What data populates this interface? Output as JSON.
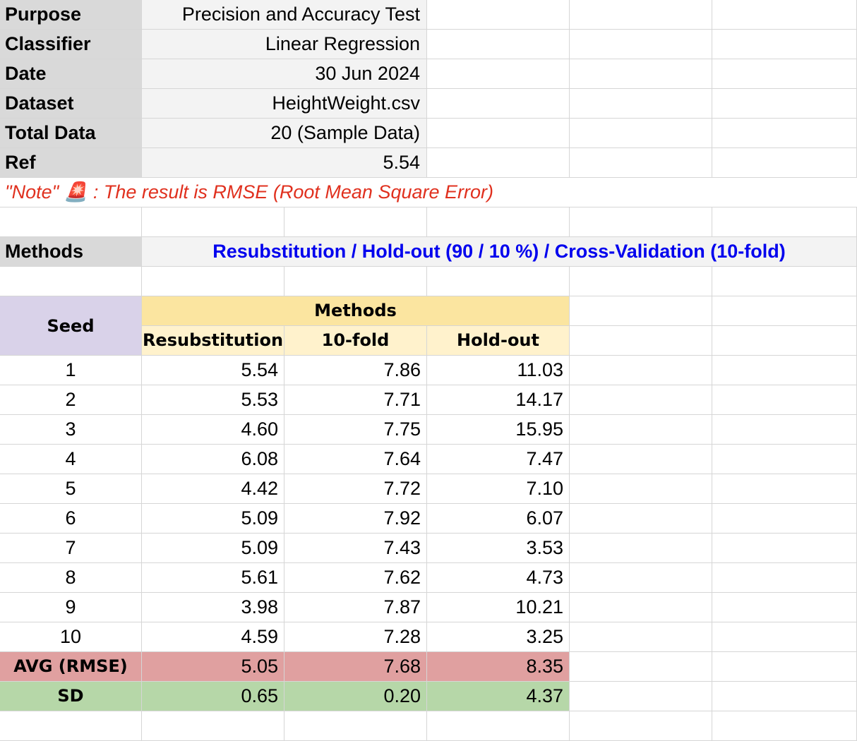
{
  "info_rows": [
    {
      "label": "Purpose",
      "value": "Precision and Accuracy Test"
    },
    {
      "label": "Classifier",
      "value": "Linear Regression"
    },
    {
      "label": "Date",
      "value": "30 Jun 2024"
    },
    {
      "label": "Dataset",
      "value": "HeightWeight.csv"
    },
    {
      "label": "Total Data",
      "value": "20 (Sample Data)"
    },
    {
      "label": "Ref",
      "value": "5.54"
    }
  ],
  "note": "\"Note\" 🚨 : The result is RMSE (Root Mean Square Error)",
  "methods_row": {
    "label": "Methods",
    "value": "Resubstitution / Hold-out (90 / 10 %) / Cross-Validation (10-fold)"
  },
  "table": {
    "seed_header": "Seed",
    "methods_header": "Methods",
    "columns": [
      "Resubstitution",
      "10-fold",
      "Hold-out"
    ],
    "rows": [
      {
        "seed": "1",
        "values": [
          "5.54",
          "7.86",
          "11.03"
        ]
      },
      {
        "seed": "2",
        "values": [
          "5.53",
          "7.71",
          "14.17"
        ]
      },
      {
        "seed": "3",
        "values": [
          "4.60",
          "7.75",
          "15.95"
        ]
      },
      {
        "seed": "4",
        "values": [
          "6.08",
          "7.64",
          "7.47"
        ]
      },
      {
        "seed": "5",
        "values": [
          "4.42",
          "7.72",
          "7.10"
        ]
      },
      {
        "seed": "6",
        "values": [
          "5.09",
          "7.92",
          "6.07"
        ]
      },
      {
        "seed": "7",
        "values": [
          "5.09",
          "7.43",
          "3.53"
        ]
      },
      {
        "seed": "8",
        "values": [
          "5.61",
          "7.62",
          "4.73"
        ]
      },
      {
        "seed": "9",
        "values": [
          "3.98",
          "7.87",
          "10.21"
        ]
      },
      {
        "seed": "10",
        "values": [
          "4.59",
          "7.28",
          "3.25"
        ]
      }
    ],
    "avg": {
      "label": "AVG (RMSE)",
      "values": [
        "5.05",
        "7.68",
        "8.35"
      ]
    },
    "sd": {
      "label": "SD",
      "values": [
        "0.65",
        "0.20",
        "4.37"
      ]
    }
  },
  "colors": {
    "label_bg": "#d9d9d9",
    "value_bg": "#f3f3f3",
    "note_red": "#e0301e",
    "methods_blue": "#0000ee",
    "seed_header_bg": "#d9d2e9",
    "methods_header_bg": "#fbe5a0",
    "subheader_bg": "#fff2cc",
    "avg_bg": "#e0a0a0",
    "sd_bg": "#b6d7a8"
  }
}
